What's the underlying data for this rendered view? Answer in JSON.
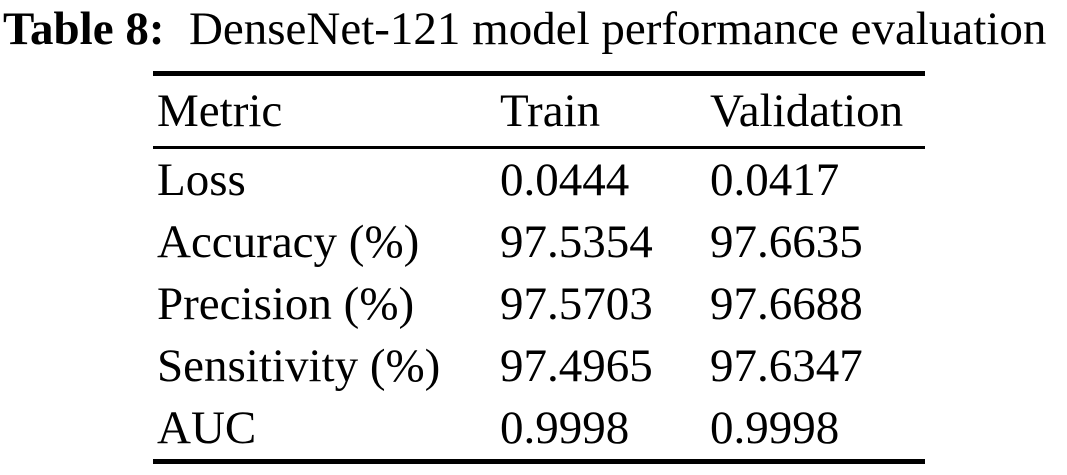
{
  "title": {
    "label": "Table 8:",
    "caption": "DenseNet-121 model performance evaluation"
  },
  "table": {
    "columns": [
      "Metric",
      "Train",
      "Validation"
    ],
    "rows": [
      {
        "metric": "Loss",
        "train": "0.0444",
        "validation": "0.0417"
      },
      {
        "metric": "Accuracy (%)",
        "train": "97.5354",
        "validation": "97.6635"
      },
      {
        "metric": "Precision (%)",
        "train": "97.5703",
        "validation": "97.6688"
      },
      {
        "metric": "Sensitivity (%)",
        "train": "97.4965",
        "validation": "97.6347"
      },
      {
        "metric": "AUC",
        "train": "0.9998",
        "validation": "0.9998"
      }
    ]
  },
  "colors": {
    "text": "#000000",
    "background": "#ffffff",
    "rule": "#000000"
  }
}
